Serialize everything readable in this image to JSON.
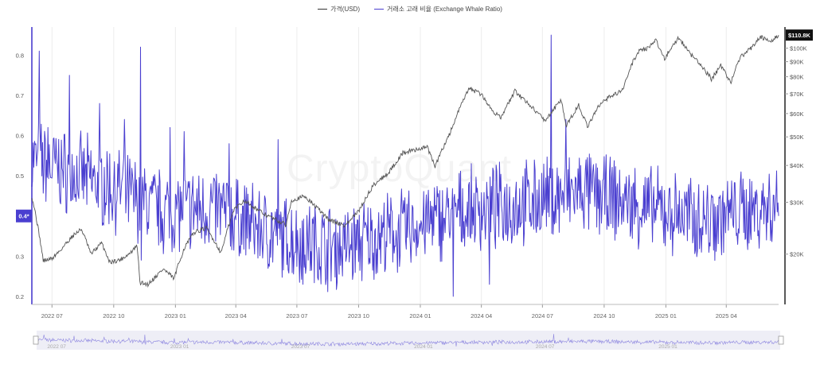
{
  "chart_data": {
    "type": "line",
    "title": "",
    "legend_position": "top-center",
    "grid": "vertical",
    "series": [
      {
        "name": "가격(USD)",
        "axis": "right",
        "color": "#555555",
        "scale": "log",
        "points": [
          [
            "2022-06-01",
            31500
          ],
          [
            "2022-06-13",
            22500
          ],
          [
            "2022-06-18",
            19000
          ],
          [
            "2022-07-01",
            19300
          ],
          [
            "2022-07-15",
            20800
          ],
          [
            "2022-08-01",
            23100
          ],
          [
            "2022-08-14",
            24300
          ],
          [
            "2022-08-28",
            20000
          ],
          [
            "2022-09-13",
            21800
          ],
          [
            "2022-09-25",
            18800
          ],
          [
            "2022-10-10",
            19100
          ],
          [
            "2022-10-25",
            20100
          ],
          [
            "2022-11-05",
            21300
          ],
          [
            "2022-11-09",
            16000
          ],
          [
            "2022-11-21",
            15800
          ],
          [
            "2022-12-14",
            17800
          ],
          [
            "2022-12-30",
            16500
          ],
          [
            "2023-01-14",
            20900
          ],
          [
            "2023-01-29",
            23700
          ],
          [
            "2023-02-16",
            24500
          ],
          [
            "2023-03-10",
            20200
          ],
          [
            "2023-03-30",
            28500
          ],
          [
            "2023-04-14",
            30400
          ],
          [
            "2023-05-10",
            27600
          ],
          [
            "2023-06-15",
            25100
          ],
          [
            "2023-06-23",
            30500
          ],
          [
            "2023-07-13",
            31400
          ],
          [
            "2023-08-17",
            26200
          ],
          [
            "2023-09-11",
            25000
          ],
          [
            "2023-10-01",
            27900
          ],
          [
            "2023-10-24",
            34500
          ],
          [
            "2023-11-15",
            37800
          ],
          [
            "2023-12-06",
            44100
          ],
          [
            "2024-01-11",
            46300
          ],
          [
            "2024-01-23",
            39500
          ],
          [
            "2024-02-15",
            52000
          ],
          [
            "2024-03-14",
            73100
          ],
          [
            "2024-04-01",
            69700
          ],
          [
            "2024-04-17",
            61300
          ],
          [
            "2024-05-01",
            58300
          ],
          [
            "2024-05-21",
            71400
          ],
          [
            "2024-06-24",
            60300
          ],
          [
            "2024-07-05",
            56700
          ],
          [
            "2024-07-29",
            66800
          ],
          [
            "2024-08-05",
            54000
          ],
          [
            "2024-08-24",
            64200
          ],
          [
            "2024-09-06",
            53900
          ],
          [
            "2024-09-27",
            65800
          ],
          [
            "2024-10-29",
            72300
          ],
          [
            "2024-11-13",
            90000
          ],
          [
            "2024-11-22",
            98400
          ],
          [
            "2024-12-05",
            100000
          ],
          [
            "2024-12-17",
            106100
          ],
          [
            "2024-12-30",
            92300
          ],
          [
            "2025-01-20",
            108800
          ],
          [
            "2025-02-03",
            97500
          ],
          [
            "2025-02-27",
            84700
          ],
          [
            "2025-03-10",
            78600
          ],
          [
            "2025-03-24",
            87300
          ],
          [
            "2025-04-08",
            76300
          ],
          [
            "2025-04-22",
            93400
          ],
          [
            "2025-05-08",
            99800
          ],
          [
            "2025-05-22",
            109700
          ],
          [
            "2025-06-05",
            104600
          ],
          [
            "2025-06-18",
            110800
          ]
        ]
      },
      {
        "name": "거래소 고래 비율 (Exchange Whale Ratio)",
        "axis": "left",
        "color": "#4a3fd0",
        "spikes": [
          [
            "2022-06-12",
            0.81
          ],
          [
            "2022-06-25",
            0.62
          ],
          [
            "2022-07-27",
            0.75
          ],
          [
            "2022-09-10",
            0.68
          ],
          [
            "2022-10-17",
            0.64
          ],
          [
            "2022-11-10",
            0.82
          ],
          [
            "2022-11-11",
            0.29
          ],
          [
            "2022-12-24",
            0.62
          ],
          [
            "2023-01-14",
            0.61
          ],
          [
            "2023-03-22",
            0.58
          ],
          [
            "2023-06-03",
            0.59
          ],
          [
            "2023-07-10",
            0.23
          ],
          [
            "2024-02-19",
            0.2
          ],
          [
            "2024-04-13",
            0.23
          ],
          [
            "2024-07-14",
            0.85
          ],
          [
            "2024-08-05",
            0.64
          ]
        ],
        "baseline": [
          [
            "2022-06-01",
            0.54
          ],
          [
            "2022-10-01",
            0.47
          ],
          [
            "2022-12-15",
            0.41
          ],
          [
            "2023-03-01",
            0.42
          ],
          [
            "2023-06-01",
            0.35
          ],
          [
            "2023-09-01",
            0.32
          ],
          [
            "2023-12-01",
            0.36
          ],
          [
            "2024-03-01",
            0.41
          ],
          [
            "2024-06-01",
            0.43
          ],
          [
            "2024-09-01",
            0.46
          ],
          [
            "2024-12-01",
            0.42
          ],
          [
            "2025-03-01",
            0.39
          ],
          [
            "2025-06-18",
            0.43
          ]
        ],
        "amplitude": 0.09,
        "current_value_label": "0.4*",
        "last": 0.4
      }
    ],
    "x": {
      "type": "time",
      "start": "2022-06-01",
      "end": "2025-06-18",
      "tick_labels": [
        "2022 07",
        "2022 10",
        "2023 01",
        "2023 04",
        "2023 07",
        "2023 10",
        "2024 01",
        "2024 04",
        "2024 07",
        "2024 10",
        "2025 01",
        "2025 04"
      ]
    },
    "y_left": {
      "min": 0.18,
      "max": 0.87,
      "ticks": [
        0.2,
        0.3,
        0.4,
        0.5,
        0.6,
        0.7,
        0.8
      ],
      "tick_labels": [
        "0.2",
        "0.3",
        "0.4",
        "0.5",
        "0.6",
        "0.7",
        "0.8"
      ]
    },
    "y_right": {
      "scale": "log",
      "min": 13500,
      "max": 118000,
      "ticks": [
        20000,
        30000,
        40000,
        50000,
        60000,
        70000,
        80000,
        90000,
        100000
      ],
      "tick_labels": [
        "$20K",
        "$30K",
        "$40K",
        "$50K",
        "$60K",
        "$70K",
        "$80K",
        "$90K",
        "$100K"
      ],
      "current_value_label": "$110.8K"
    },
    "navigator": {
      "tick_labels": [
        "2022 07",
        "2023 01",
        "2023 07",
        "2024 01",
        "2024 07",
        "2025 01"
      ]
    },
    "watermark": "CryptoQuant"
  },
  "colors": {
    "price": "#555555",
    "ratio": "#4a3fd0",
    "grid": "#ececec",
    "axis": "#999999"
  }
}
